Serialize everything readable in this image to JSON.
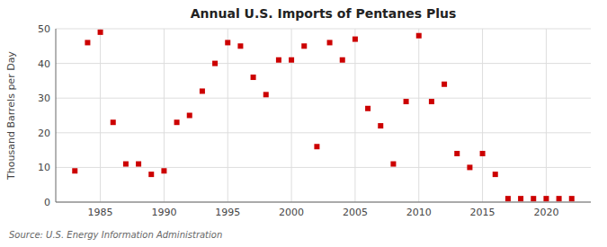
{
  "chart_data": {
    "type": "scatter",
    "title": "Annual U.S. Imports of Pentanes Plus",
    "ylabel": "Thousand Barrels per Day",
    "annotations": [
      "Source: U.S. Energy Information Administration"
    ],
    "x": [
      1983,
      1984,
      1985,
      1986,
      1987,
      1988,
      1989,
      1990,
      1991,
      1992,
      1993,
      1994,
      1995,
      1996,
      1997,
      1998,
      1999,
      2000,
      2001,
      2002,
      2003,
      2004,
      2005,
      2006,
      2007,
      2008,
      2009,
      2010,
      2011,
      2012,
      2013,
      2014,
      2015,
      2016,
      2017,
      2018,
      2019,
      2020,
      2021,
      2022
    ],
    "values": [
      9,
      46,
      49,
      23,
      11,
      11,
      8,
      9,
      23,
      25,
      32,
      40,
      46,
      45,
      36,
      31,
      41,
      41,
      45,
      16,
      46,
      41,
      47,
      27,
      22,
      11,
      29,
      48,
      29,
      34,
      14,
      10,
      14,
      8,
      1,
      1,
      1,
      1,
      1,
      1
    ],
    "color": "#cc0000",
    "marker": "square",
    "xlim": [
      1981.5,
      2023.5
    ],
    "ylim": [
      0,
      50
    ],
    "xticks": [
      1985,
      1990,
      1995,
      2000,
      2005,
      2010,
      2015,
      2020
    ],
    "yticks": [
      0,
      10,
      20,
      30,
      40,
      50
    ],
    "grid": true
  }
}
